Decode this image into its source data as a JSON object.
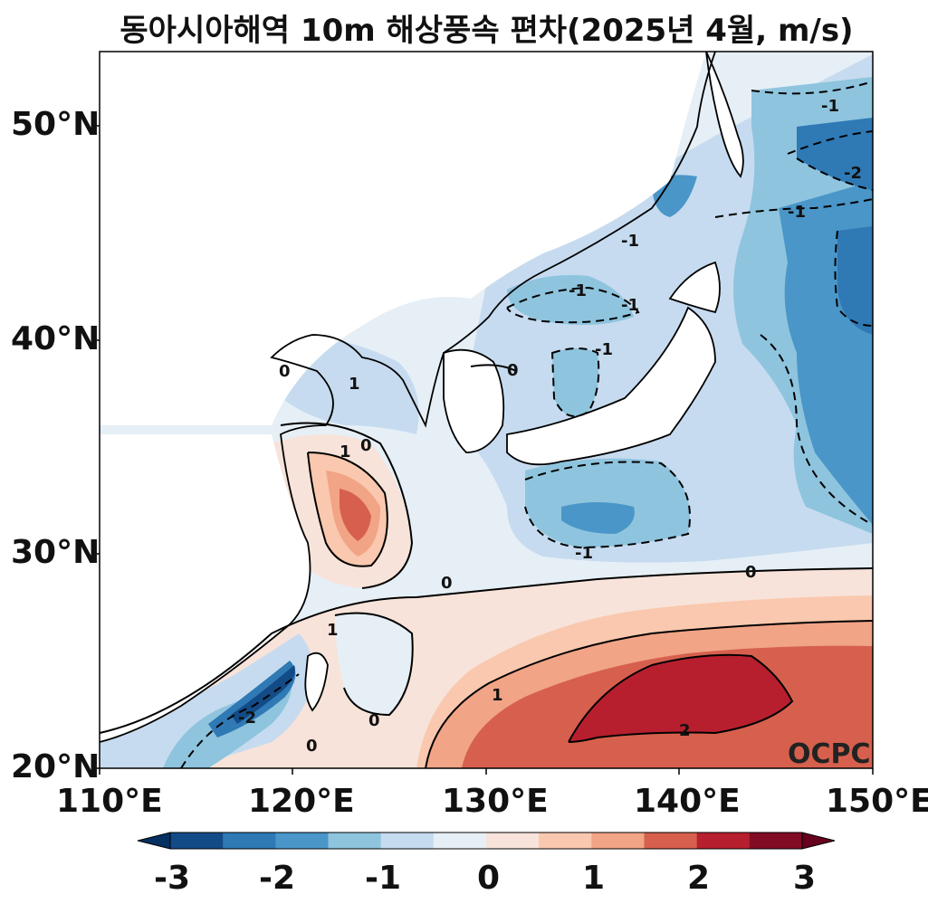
{
  "title": "동아시아해역 10m 해상풍속 편차(2025년 4월, m/s)",
  "watermark": "OCPC",
  "map": {
    "lon_range": [
      110,
      150
    ],
    "lat_range": [
      20,
      53.5
    ],
    "lon_ticks": [
      "110°E",
      "120°E",
      "130°E",
      "140°E",
      "150°E"
    ],
    "lat_ticks": [
      "50°N",
      "40°N",
      "30°N",
      "20°N"
    ],
    "contour_labels": [
      "-1",
      "-1",
      "-1",
      "-1",
      "-1",
      "-1",
      "-1",
      "-2",
      "-2",
      "0",
      "0",
      "0",
      "0",
      "0",
      "0",
      "0",
      "1",
      "1",
      "1",
      "1",
      "2"
    ]
  },
  "colorbar": {
    "ticks": [
      "-3",
      "-2",
      "-1",
      "0",
      "1",
      "2",
      "3"
    ],
    "colors": [
      "#053061",
      "#134b87",
      "#2f79b5",
      "#4a96c8",
      "#8ec4de",
      "#c6dbef",
      "#e6eff6",
      "#f7e3d9",
      "#fac8ae",
      "#f1a486",
      "#d6604d",
      "#b71f2e",
      "#820c24",
      "#67001f"
    ]
  },
  "colors": {
    "coast": "#000000",
    "land": "#ffffff"
  }
}
